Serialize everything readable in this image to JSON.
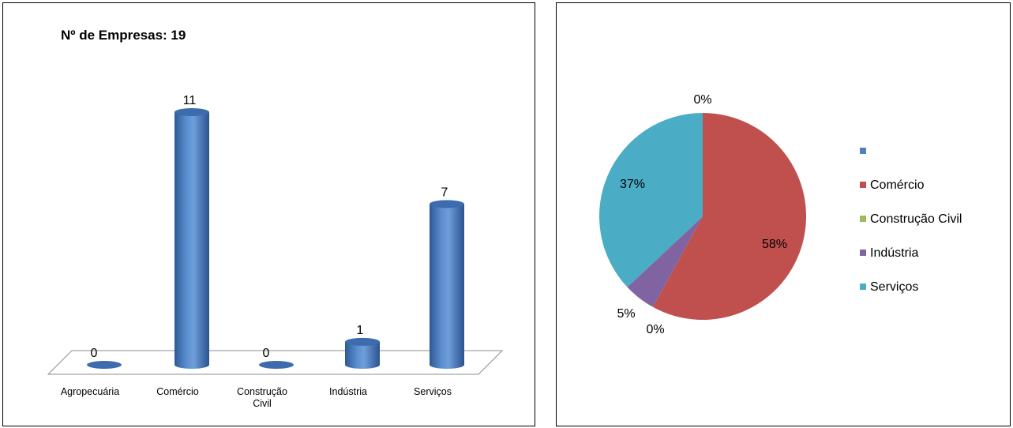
{
  "charts": {
    "bar": {
      "title": "Nº de Empresas: 19"
    },
    "pie": {
      "top_label": "0%"
    }
  },
  "chart_data": [
    {
      "type": "bar",
      "title": "Nº de Empresas: 19",
      "categories": [
        "Agropecuária",
        "Comércio",
        "Construção Civil",
        "Indústria",
        "Serviços"
      ],
      "category_lines": [
        [
          "Agropecuária"
        ],
        [
          "Comércio"
        ],
        [
          "Construção",
          "Civil"
        ],
        [
          "Indústria"
        ],
        [
          "Serviços"
        ]
      ],
      "values": [
        0,
        11,
        0,
        1,
        7
      ],
      "data_labels": [
        "0",
        "11",
        "0",
        "1",
        "7"
      ],
      "color": "#4F81BD",
      "grid": false,
      "ylim": [
        0,
        11
      ]
    },
    {
      "type": "pie",
      "categories": [
        "",
        "Comércio",
        "Construção Civil",
        "Indústria",
        "Serviços"
      ],
      "values": [
        0,
        58,
        0,
        5,
        37
      ],
      "data_labels": [
        "0%",
        "58%",
        "0%",
        "5%",
        "37%"
      ],
      "colors": [
        "#4F81BD",
        "#C0504D",
        "#9BBB59",
        "#8064A2",
        "#4BACC6"
      ],
      "legend": "right"
    }
  ]
}
